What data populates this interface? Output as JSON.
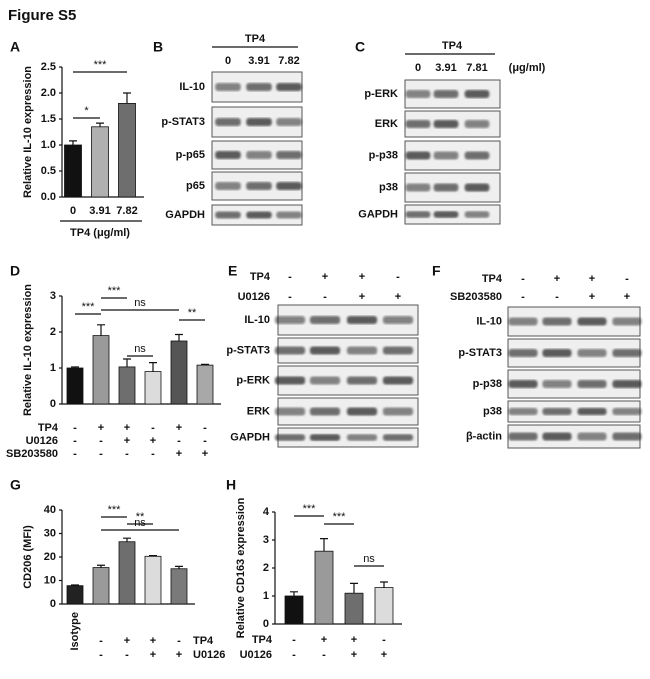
{
  "title": "Figure S5",
  "chart_data": [
    {
      "panel": "A",
      "type": "bar",
      "y_label": "Relative IL-10 expression",
      "x_label": "TP4 (μg/ml)",
      "categories": [
        "0",
        "3.91",
        "7.82"
      ],
      "values": [
        1.0,
        1.35,
        1.8
      ],
      "errors": [
        0.08,
        0.07,
        0.2
      ],
      "colors": [
        "#111111",
        "#b0b0b0",
        "#6e6e6e"
      ],
      "ylim": [
        0,
        2.5
      ],
      "yticks": [
        {
          "value": 0,
          "label": "0.0"
        },
        {
          "value": 0.5,
          "label": "0.5"
        },
        {
          "value": 1,
          "label": "1.0"
        },
        {
          "value": 1.5,
          "label": "1.5"
        },
        {
          "value": 2,
          "label": "2.0"
        },
        {
          "value": 2.5,
          "label": "2.5"
        }
      ],
      "significance": [
        {
          "text": "*",
          "between": [
            0,
            1
          ]
        },
        {
          "text": "***",
          "between": [
            0,
            2
          ]
        }
      ]
    },
    {
      "panel": "D",
      "type": "bar",
      "y_label": "Relative IL-10 expression",
      "categories": [
        null,
        null,
        null,
        null,
        null,
        null
      ],
      "values": [
        1.0,
        1.9,
        1.03,
        0.9,
        1.75,
        1.08
      ],
      "errors": [
        0.03,
        0.3,
        0.22,
        0.25,
        0.18,
        0.02
      ],
      "colors": [
        "#111111",
        "#9a9a9a",
        "#6e6e6e",
        "#dcdcdc",
        "#555555",
        "#a8a8a8"
      ],
      "ylim": [
        0,
        3
      ],
      "yticks": [
        0,
        1,
        2,
        3
      ],
      "conditions": [
        {
          "label": "TP4",
          "signs": [
            "-",
            "+",
            "+",
            "-",
            "+",
            "-"
          ]
        },
        {
          "label": "U0126",
          "signs": [
            "-",
            "-",
            "+",
            "+",
            "-",
            "-"
          ]
        },
        {
          "label": "SB203580",
          "signs": [
            "-",
            "-",
            "-",
            "-",
            "+",
            "+"
          ]
        }
      ],
      "significance": [
        {
          "text": "***",
          "between": [
            0,
            1
          ]
        },
        {
          "text": "***",
          "between": [
            1,
            2
          ]
        },
        {
          "text": "ns",
          "between": [
            1,
            4
          ]
        },
        {
          "text": "ns",
          "between": [
            2,
            3
          ]
        },
        {
          "text": "**",
          "between": [
            4,
            5
          ]
        }
      ]
    },
    {
      "panel": "G",
      "type": "bar",
      "y_label": "CD206 (MFI)",
      "categories": [
        "Isotype",
        null,
        null,
        null,
        null
      ],
      "values": [
        7.8,
        15.5,
        26.5,
        20.3,
        15
      ],
      "errors": [
        0.3,
        1,
        1.5,
        0.3,
        1
      ],
      "colors": [
        "#222222",
        "#9a9a9a",
        "#6e6e6e",
        "#dcdcdc",
        "#7a7a7a"
      ],
      "ylim": [
        0,
        40
      ],
      "yticks": [
        0,
        10,
        20,
        30,
        40
      ],
      "conditions": [
        {
          "label": "TP4",
          "signs": [
            null,
            "-",
            "+",
            "+",
            "-"
          ]
        },
        {
          "label": "U0126",
          "signs": [
            null,
            "-",
            "-",
            "+",
            "+"
          ]
        }
      ],
      "significance": [
        {
          "text": "***",
          "between": [
            1,
            2
          ]
        },
        {
          "text": "**",
          "between": [
            2,
            3
          ]
        },
        {
          "text": "ns",
          "between": [
            1,
            4
          ]
        }
      ]
    },
    {
      "panel": "H",
      "type": "bar",
      "y_label": "Relative CD163 expression",
      "categories": [
        null,
        null,
        null,
        null
      ],
      "values": [
        1.0,
        2.6,
        1.1,
        1.3
      ],
      "errors": [
        0.15,
        0.45,
        0.35,
        0.2
      ],
      "colors": [
        "#111111",
        "#9a9a9a",
        "#6e6e6e",
        "#dcdcdc"
      ],
      "ylim": [
        0,
        4
      ],
      "yticks": [
        0,
        1,
        2,
        3,
        4
      ],
      "conditions": [
        {
          "label": "TP4",
          "signs": [
            "-",
            "+",
            "+",
            "-"
          ]
        },
        {
          "label": "U0126",
          "signs": [
            "-",
            "-",
            "+",
            "+"
          ]
        }
      ],
      "significance": [
        {
          "text": "***",
          "between": [
            0,
            1
          ]
        },
        {
          "text": "***",
          "between": [
            1,
            2
          ]
        },
        {
          "text": "ns",
          "between": [
            2,
            3
          ]
        }
      ]
    }
  ],
  "blots": [
    {
      "panel": "B",
      "header": "TP4",
      "lanes": [
        "0",
        "3.91",
        "7.82"
      ],
      "rows": [
        "IL-10",
        "p-STAT3",
        "p-p65",
        "p65",
        "GAPDH"
      ]
    },
    {
      "panel": "C",
      "header": "TP4",
      "lanes": [
        "0",
        "3.91",
        "7.81"
      ],
      "unit": "(μg/ml)",
      "rows": [
        "p-ERK",
        "ERK",
        "p-p38",
        "p38",
        "GAPDH"
      ]
    },
    {
      "panel": "E",
      "conditions": [
        {
          "label": "TP4",
          "signs": [
            "-",
            "+",
            "+",
            "-"
          ]
        },
        {
          "label": "U0126",
          "signs": [
            "-",
            "-",
            "+",
            "+"
          ]
        }
      ],
      "rows": [
        "IL-10",
        "p-STAT3",
        "p-ERK",
        "ERK",
        "GAPDH"
      ]
    },
    {
      "panel": "F",
      "conditions": [
        {
          "label": "TP4",
          "signs": [
            "-",
            "+",
            "+",
            "-"
          ]
        },
        {
          "label": "SB203580",
          "signs": [
            "-",
            "-",
            "+",
            "+"
          ]
        }
      ],
      "rows": [
        "IL-10",
        "p-STAT3",
        "p-p38",
        "p38",
        "β-actin"
      ]
    }
  ]
}
